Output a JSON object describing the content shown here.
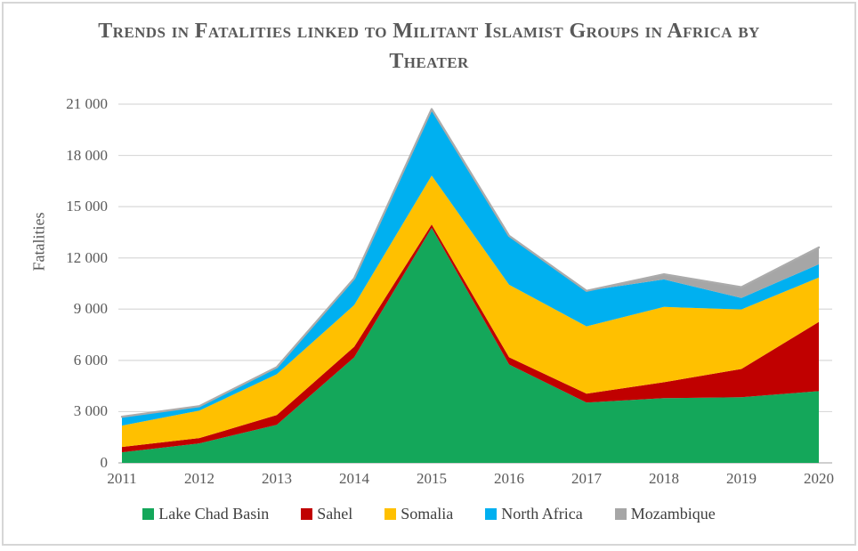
{
  "frame": {
    "border_color": "#d6d6d6",
    "background": "#ffffff"
  },
  "title": {
    "text": "Trends in Fatalities linked to Militant Islamist Groups in Africa by Theater",
    "color": "#595959"
  },
  "y_axis": {
    "label": "Fatalities",
    "ticks": [
      "0",
      "3 000",
      "6 000",
      "9 000",
      "12 000",
      "15 000",
      "18 000",
      "21 000"
    ]
  },
  "x_axis": {
    "ticks": [
      "2011",
      "2012",
      "2013",
      "2014",
      "2015",
      "2016",
      "2017",
      "2018",
      "2019",
      "2020"
    ]
  },
  "legend": {
    "position": "bottom",
    "items": [
      {
        "label": "Lake Chad Basin",
        "color": "#14a75a"
      },
      {
        "label": "Sahel",
        "color": "#c00000"
      },
      {
        "label": "Somalia",
        "color": "#ffc000"
      },
      {
        "label": "North Africa",
        "color": "#00b0f0"
      },
      {
        "label": "Mozambique",
        "color": "#a6a6a6"
      }
    ]
  },
  "chart_data": {
    "type": "area",
    "stacked": true,
    "title": "Trends in Fatalities linked to Militant Islamist Groups in Africa by Theater",
    "xlabel": "",
    "ylabel": "Fatalities",
    "ylim": [
      0,
      21000
    ],
    "ytick_values": [
      0,
      3000,
      6000,
      9000,
      12000,
      15000,
      18000,
      21000
    ],
    "grid": "horizontal",
    "gridline_color": "#d9d9d9",
    "axis_line_color": "#bfbfbf",
    "stack_outline_color": "#ababab",
    "legend_position": "bottom",
    "x": [
      2011,
      2012,
      2013,
      2014,
      2015,
      2016,
      2017,
      2018,
      2019,
      2020
    ],
    "series": [
      {
        "name": "Lake Chad Basin",
        "color": "#14a75a",
        "values": [
          620,
          1140,
          2230,
          6180,
          13760,
          5760,
          3530,
          3790,
          3840,
          4200
        ]
      },
      {
        "name": "Sahel",
        "color": "#c00000",
        "values": [
          310,
          310,
          570,
          620,
          200,
          420,
          520,
          930,
          1660,
          4050
        ]
      },
      {
        "name": "Somalia",
        "color": "#ffc000",
        "values": [
          1250,
          1610,
          2390,
          2440,
          2860,
          4250,
          3940,
          4410,
          3480,
          2600
        ]
      },
      {
        "name": "North Africa",
        "color": "#00b0f0",
        "values": [
          520,
          260,
          410,
          1560,
          3890,
          2860,
          2080,
          1610,
          670,
          780
        ]
      },
      {
        "name": "Mozambique",
        "color": "#a6a6a6",
        "values": [
          0,
          0,
          0,
          0,
          0,
          0,
          0,
          300,
          630,
          980
        ]
      }
    ],
    "totals": [
      2700,
      3320,
      5600,
      10800,
      20710,
      13290,
      10070,
      11040,
      10280,
      12610
    ]
  }
}
